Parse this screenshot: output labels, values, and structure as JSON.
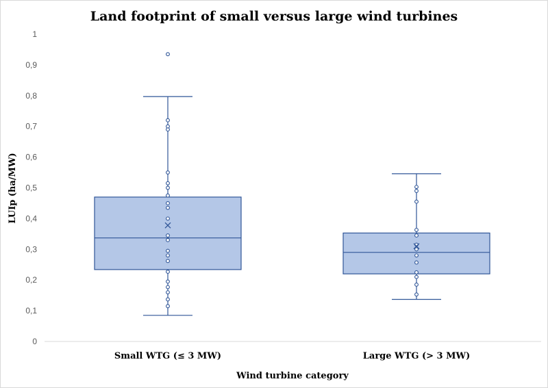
{
  "chart_data": {
    "type": "boxplot",
    "title": "Land footprint of small versus large wind turbines",
    "xlabel": "Wind turbine category",
    "ylabel": "LUIp (ha/MW)",
    "ylim": [
      0,
      1
    ],
    "yticks": [
      "0",
      "0,1",
      "0,2",
      "0,3",
      "0,4",
      "0,5",
      "0,6",
      "0,7",
      "0,8",
      "0,9",
      "1"
    ],
    "ytick_values": [
      0,
      0.1,
      0.2,
      0.3,
      0.4,
      0.5,
      0.6,
      0.7,
      0.8,
      0.9,
      1
    ],
    "grid": false,
    "colors": {
      "box_fill": "#b4c7e7",
      "box_stroke": "#2f5597",
      "axis": "#d9d9d9"
    },
    "categories": [
      "Small WTG (≤ 3 MW)",
      "Large WTG (> 3 MW)"
    ],
    "boxes": [
      {
        "name": "Small WTG (≤ 3 MW)",
        "whisker_low": 0.085,
        "q1": 0.234,
        "median": 0.337,
        "q3": 0.47,
        "whisker_high": 0.797,
        "mean": 0.378,
        "points": [
          0.935,
          0.72,
          0.7,
          0.69,
          0.55,
          0.515,
          0.5,
          0.475,
          0.45,
          0.435,
          0.4,
          0.345,
          0.33,
          0.295,
          0.28,
          0.262,
          0.227,
          0.195,
          0.177,
          0.16,
          0.137,
          0.115
        ]
      },
      {
        "name": "Large WTG (> 3 MW)",
        "whisker_low": 0.137,
        "q1": 0.22,
        "median": 0.29,
        "q3": 0.353,
        "whisker_high": 0.546,
        "mean": 0.31,
        "points": [
          0.503,
          0.49,
          0.455,
          0.363,
          0.345,
          0.315,
          0.3,
          0.28,
          0.257,
          0.225,
          0.21,
          0.185,
          0.153
        ]
      }
    ]
  }
}
